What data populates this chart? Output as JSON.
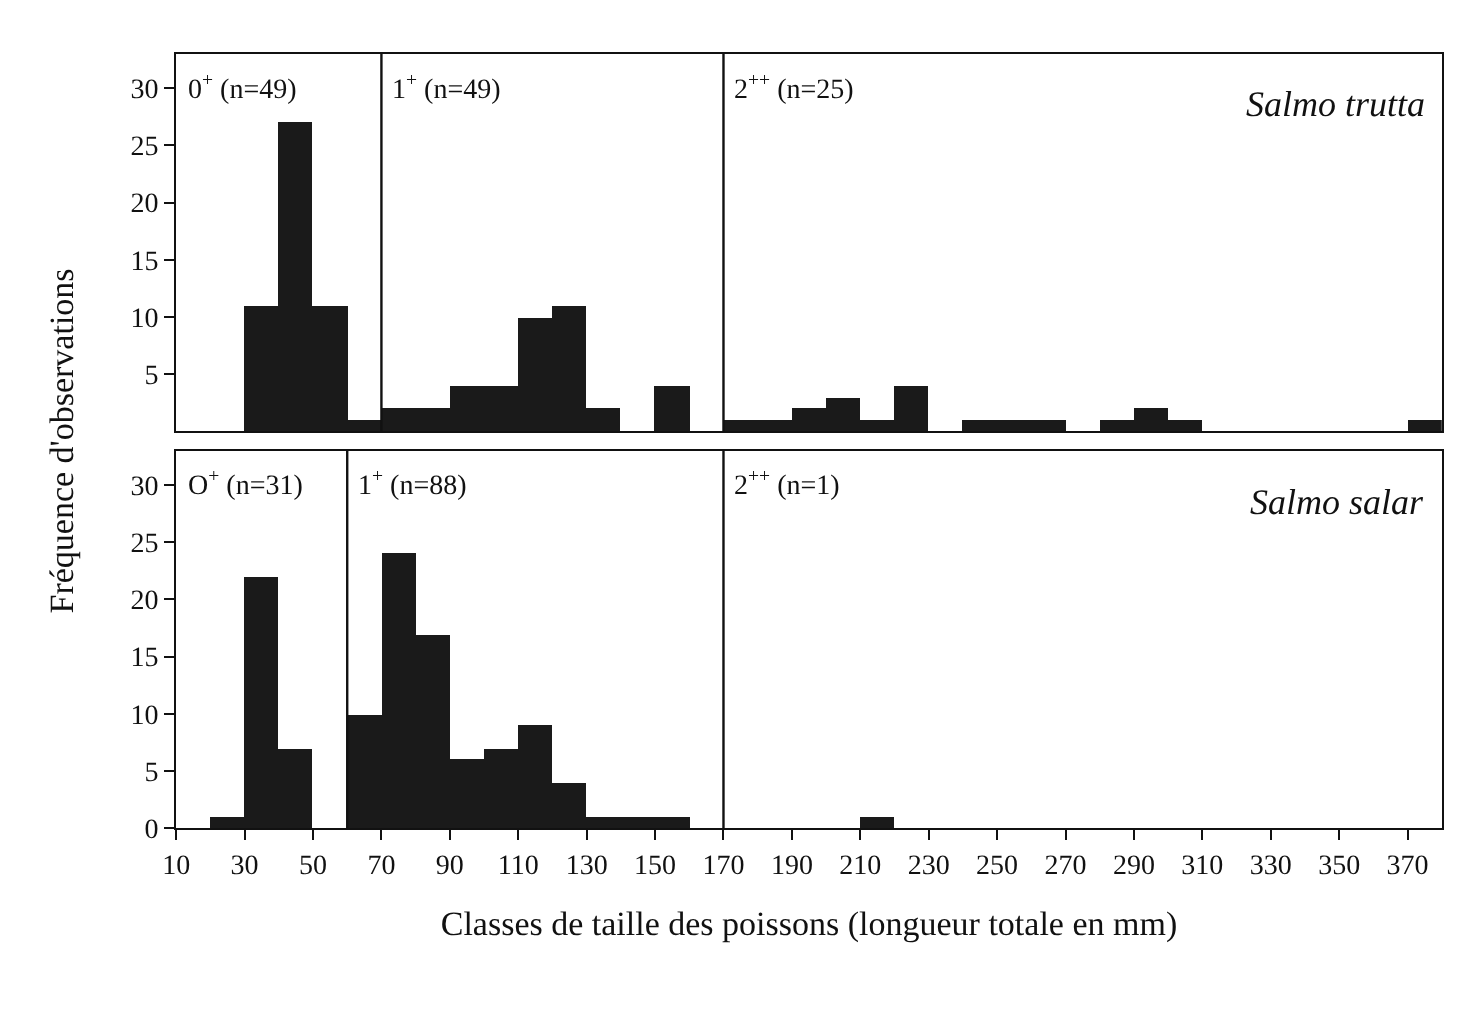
{
  "chart_data": [
    {
      "type": "histogram",
      "ylabel": "Fréquence d'observations",
      "color": "#1a1a1a",
      "bins": [
        10,
        20,
        30,
        40,
        50,
        60,
        70,
        80,
        90,
        100,
        110,
        120,
        130,
        140,
        150,
        160,
        170,
        180,
        190,
        200,
        210,
        220,
        230,
        240,
        250,
        260,
        270,
        280,
        290,
        300,
        310,
        320,
        330,
        340,
        350,
        360,
        370,
        380
      ],
      "values": [
        0,
        0,
        11,
        27,
        11,
        1,
        2,
        2,
        4,
        4,
        10,
        11,
        2,
        0,
        4,
        0,
        1,
        1,
        2,
        3,
        1,
        4,
        0,
        1,
        1,
        1,
        0,
        1,
        2,
        1,
        0,
        0,
        0,
        0,
        0,
        0,
        1
      ],
      "xlim": [
        10,
        380
      ],
      "ylim": [
        0,
        33
      ],
      "yticks": [
        5,
        10,
        15,
        20,
        25,
        30
      ],
      "tick_labels": "y",
      "ref_lines": [
        {
          "axis": "x",
          "value": 70
        },
        {
          "axis": "x",
          "value": 170
        }
      ],
      "annotations": [
        "0$^{+}$ (n=49)",
        "1$^{+}$ (n=49)",
        "2$^{++}$ (n=25)",
        "Salmo trutta"
      ]
    },
    {
      "type": "histogram",
      "xlabel": "Classes de taille des poissons (longueur totale en mm)",
      "color": "#1a1a1a",
      "bins": [
        10,
        20,
        30,
        40,
        50,
        60,
        70,
        80,
        90,
        100,
        110,
        120,
        130,
        140,
        150,
        160,
        170,
        180,
        190,
        200,
        210,
        220,
        230,
        240,
        250,
        260,
        270,
        280,
        290,
        300,
        310,
        320,
        330,
        340,
        350,
        360,
        370,
        380
      ],
      "values": [
        0,
        1,
        22,
        7,
        0,
        10,
        24,
        17,
        6,
        7,
        9,
        4,
        1,
        1,
        1,
        0,
        0,
        0,
        0,
        0,
        1,
        0,
        0,
        0,
        0,
        0,
        0,
        0,
        0,
        0,
        0,
        0,
        0,
        0,
        0,
        0,
        0
      ],
      "xlim": [
        10,
        380
      ],
      "ylim": [
        0,
        33
      ],
      "yticks": [
        0,
        5,
        10,
        15,
        20,
        25,
        30
      ],
      "xticks": [
        10,
        30,
        50,
        70,
        90,
        110,
        130,
        150,
        170,
        190,
        210,
        230,
        250,
        270,
        290,
        310,
        330,
        350,
        370
      ],
      "ref_lines": [
        {
          "axis": "x",
          "value": 60
        },
        {
          "axis": "x",
          "value": 170
        }
      ],
      "annotations": [
        "O$^{+}$ (n=31)",
        "1$^{+}$ (n=88)",
        "2$^{++}$ (n=1)",
        "Salmo salar"
      ]
    }
  ]
}
